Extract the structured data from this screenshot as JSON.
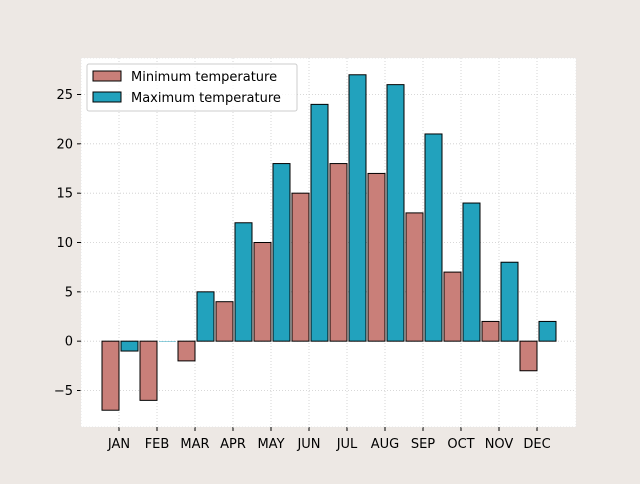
{
  "chart_data": {
    "type": "bar",
    "title": "",
    "xlabel": "",
    "ylabel": "",
    "categories": [
      "JAN",
      "FEB",
      "MAR",
      "APR",
      "MAY",
      "JUN",
      "JUL",
      "AUG",
      "SEP",
      "OCT",
      "NOV",
      "DEC"
    ],
    "series": [
      {
        "name": "Minimum temperature",
        "color": "#c97f79",
        "values": [
          -7,
          -6,
          -2,
          4,
          10,
          15,
          18,
          17,
          13,
          7,
          2,
          -3
        ]
      },
      {
        "name": "Maximum temperature",
        "color": "#22a2bd",
        "values": [
          -1,
          0,
          5,
          12,
          18,
          24,
          27,
          26,
          21,
          14,
          8,
          2
        ]
      }
    ],
    "ylim": [
      -8.7,
      28.7
    ],
    "yticks": [
      -5,
      0,
      5,
      10,
      15,
      20,
      25
    ],
    "ytick_labels": [
      "−5",
      "0",
      "5",
      "10",
      "15",
      "20",
      "25"
    ],
    "grid": true,
    "legend": "top-left",
    "colors": {
      "page_background": "#ede8e4",
      "axes_background": "#ffffff",
      "bar_edge": "#000000",
      "grid": "#cccccc"
    }
  }
}
